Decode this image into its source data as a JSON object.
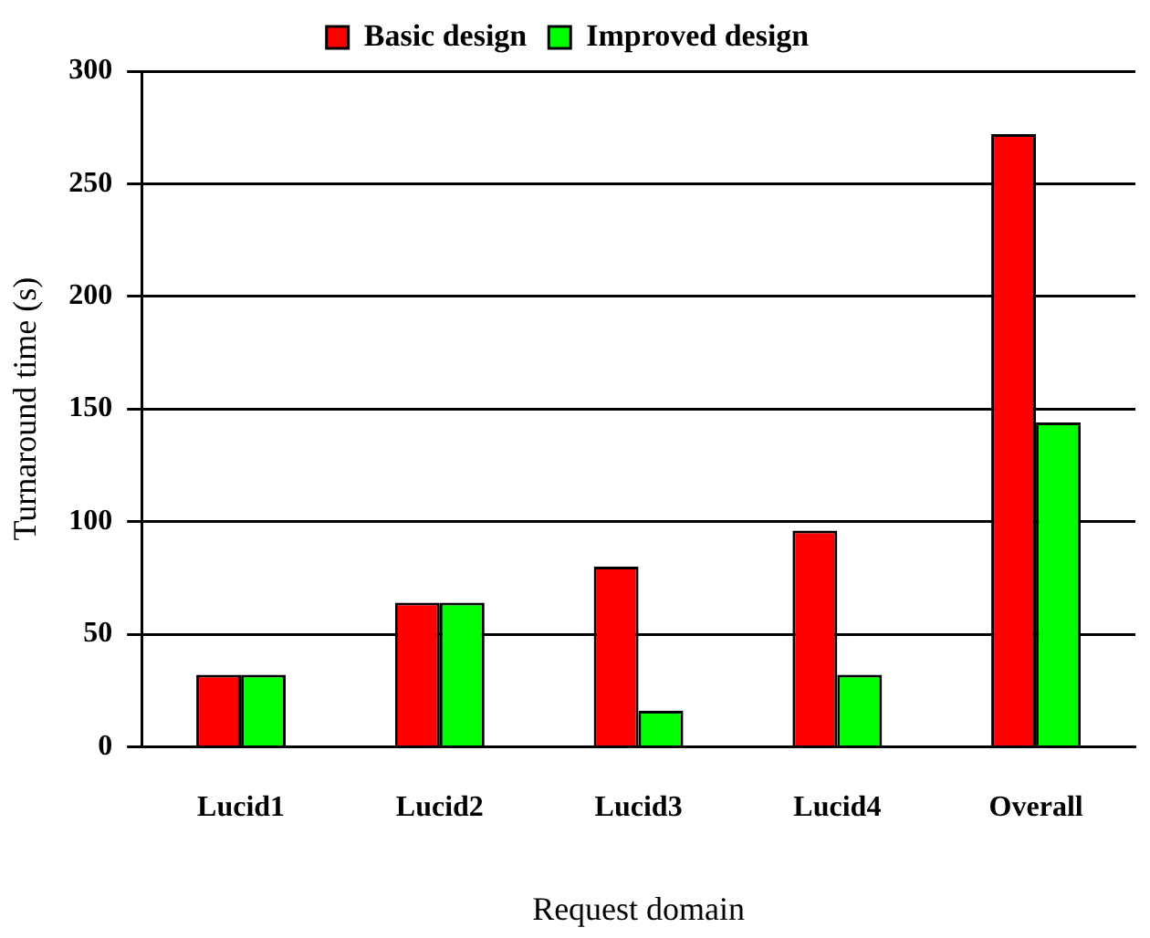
{
  "chart_data": {
    "type": "bar",
    "xlabel": "Request domain",
    "ylabel": "Turnaround time (s)",
    "categories": [
      "Lucid1",
      "Lucid2",
      "Lucid3",
      "Lucid4",
      "Overall"
    ],
    "series": [
      {
        "name": "Basic design",
        "color": "#ff0000",
        "values": [
          32,
          64,
          80,
          96,
          272
        ]
      },
      {
        "name": "Improved design",
        "color": "#00ff00",
        "values": [
          32,
          64,
          16,
          32,
          144
        ]
      }
    ],
    "ylim": [
      0,
      300
    ],
    "yticks": [
      0,
      50,
      100,
      150,
      200,
      250,
      300
    ],
    "grid": "y",
    "legend": "top"
  }
}
